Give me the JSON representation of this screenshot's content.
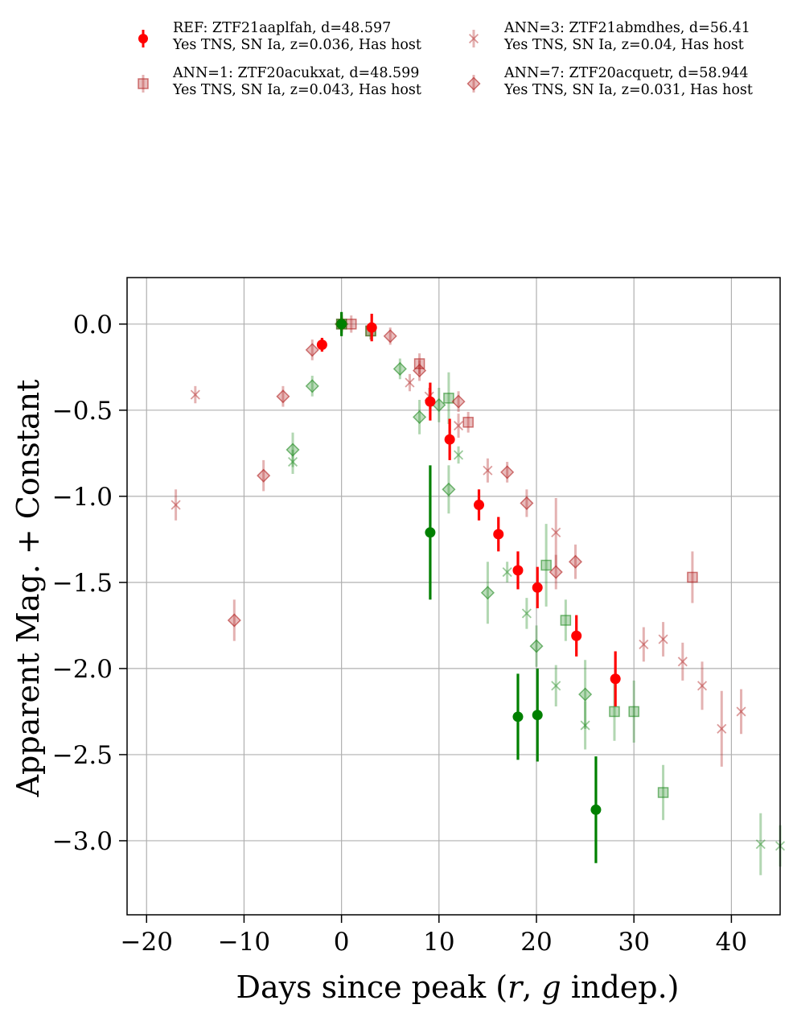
{
  "chart_data": {
    "type": "scatter",
    "xlabel": "Days since peak (r, g indep.)",
    "xlabel_parts": [
      "Days since peak (",
      "r",
      ", ",
      "g",
      " indep.)"
    ],
    "ylabel": "Apparent Mag. + Constant",
    "xlim": [
      -22,
      45
    ],
    "ylim": [
      -3.43,
      0.27
    ],
    "y_inverted": false,
    "grid": true,
    "legend_placement": "top, two columns, above plot",
    "x_ticks": [
      -20,
      -10,
      0,
      10,
      20,
      30,
      40
    ],
    "x_tick_labels": [
      "−20",
      "−10",
      "0",
      "10",
      "20",
      "30",
      "40"
    ],
    "y_ticks": [
      0.0,
      -0.5,
      -1.0,
      -1.5,
      -2.0,
      -2.5,
      -3.0
    ],
    "y_tick_labels": [
      "0.0",
      "−0.5",
      "−1.0",
      "−1.5",
      "−2.0",
      "−2.5",
      "−3.0"
    ],
    "colors": {
      "r_band": "#ff0000",
      "g_band": "#008000",
      "neighbor_r": "#b22222",
      "neighbor_g": "#228b22"
    },
    "series": [
      {
        "legend_line1": "REF: ZTF21aaplfah, d=48.597",
        "legend_line2": "Yes TNS, SN Ia, z=0.036, Has host",
        "marker": "circle",
        "opacity": 1.0,
        "r_band": [
          {
            "x": -2,
            "y": -0.12,
            "err": 0.04
          },
          {
            "x": 0,
            "y": 0.0,
            "err": 0.04
          },
          {
            "x": 3.1,
            "y": -0.02,
            "err": 0.08
          },
          {
            "x": 9.1,
            "y": -0.45,
            "err": 0.11
          },
          {
            "x": 11.1,
            "y": -0.67,
            "err": 0.12
          },
          {
            "x": 14.1,
            "y": -1.05,
            "err": 0.09
          },
          {
            "x": 16.1,
            "y": -1.22,
            "err": 0.1
          },
          {
            "x": 18.1,
            "y": -1.43,
            "err": 0.11
          },
          {
            "x": 20.1,
            "y": -1.53,
            "err": 0.12
          },
          {
            "x": 24.1,
            "y": -1.81,
            "err": 0.12
          },
          {
            "x": 28.1,
            "y": -2.06,
            "err": 0.16
          }
        ],
        "g_band": [
          {
            "x": 0,
            "y": 0.0,
            "err": 0.07
          },
          {
            "x": 9.1,
            "y": -1.21,
            "err": 0.39
          },
          {
            "x": 18.1,
            "y": -2.28,
            "err": 0.25
          },
          {
            "x": 20.1,
            "y": -2.27,
            "err": 0.27
          },
          {
            "x": 26.1,
            "y": -2.82,
            "err": 0.31
          }
        ]
      },
      {
        "legend_line1": "ANN=1: ZTF20acukxat, d=48.599",
        "legend_line2": "Yes TNS, SN Ia, z=0.043, Has host",
        "marker": "square",
        "opacity": 0.3,
        "r_band": [
          {
            "x": 0,
            "y": 0.0,
            "err": 0.05
          },
          {
            "x": 1,
            "y": 0.0,
            "err": 0.05
          },
          {
            "x": 3,
            "y": -0.04,
            "err": 0.05
          },
          {
            "x": 8,
            "y": -0.23,
            "err": 0.06
          },
          {
            "x": 13,
            "y": -0.57,
            "err": 0.06
          },
          {
            "x": 36,
            "y": -1.47,
            "err": 0.15
          }
        ],
        "g_band": [
          {
            "x": 0,
            "y": 0.0,
            "err": 0.05
          },
          {
            "x": 3,
            "y": -0.04,
            "err": 0.05
          },
          {
            "x": 11,
            "y": -0.43,
            "err": 0.15
          },
          {
            "x": 21,
            "y": -1.4,
            "err": 0.24
          },
          {
            "x": 23,
            "y": -1.72,
            "err": 0.12
          },
          {
            "x": 28,
            "y": -2.25,
            "err": 0.17
          },
          {
            "x": 30,
            "y": -2.25,
            "err": 0.18
          },
          {
            "x": 33,
            "y": -2.72,
            "err": 0.16
          }
        ]
      },
      {
        "legend_line1": "ANN=3: ZTF21abmdhes, d=56.41",
        "legend_line2": "Yes TNS, SN Ia, z=0.04, Has host",
        "marker": "x",
        "opacity": 0.3,
        "r_band": [
          {
            "x": -17,
            "y": -1.05,
            "err": 0.09
          },
          {
            "x": -15,
            "y": -0.41,
            "err": 0.05
          },
          {
            "x": 7,
            "y": -0.34,
            "err": 0.05
          },
          {
            "x": 9,
            "y": -0.42,
            "err": 0.05
          },
          {
            "x": 12,
            "y": -0.59,
            "err": 0.07
          },
          {
            "x": 15,
            "y": -0.85,
            "err": 0.07
          },
          {
            "x": 22,
            "y": -1.21,
            "err": 0.2
          },
          {
            "x": 31,
            "y": -1.86,
            "err": 0.1
          },
          {
            "x": 33,
            "y": -1.83,
            "err": 0.1
          },
          {
            "x": 35,
            "y": -1.96,
            "err": 0.11
          },
          {
            "x": 37,
            "y": -2.1,
            "err": 0.14
          },
          {
            "x": 39,
            "y": -2.35,
            "err": 0.22
          },
          {
            "x": 41,
            "y": -2.25,
            "err": 0.13
          }
        ],
        "g_band": [
          {
            "x": -5,
            "y": -0.8,
            "err": 0.07
          },
          {
            "x": 12,
            "y": -0.76,
            "err": 0.05
          },
          {
            "x": 17,
            "y": -1.44,
            "err": 0.06
          },
          {
            "x": 19,
            "y": -1.68,
            "err": 0.09
          },
          {
            "x": 22,
            "y": -2.1,
            "err": 0.12
          },
          {
            "x": 25,
            "y": -2.33,
            "err": 0.14
          },
          {
            "x": 43,
            "y": -3.02,
            "err": 0.18
          },
          {
            "x": 45,
            "y": -3.03,
            "err": 0.12
          }
        ]
      },
      {
        "legend_line1": "ANN=7: ZTF20acquetr, d=58.944",
        "legend_line2": "Yes TNS, SN Ia, z=0.031, Has host",
        "marker": "diamond",
        "opacity": 0.3,
        "r_band": [
          {
            "x": -11,
            "y": -1.72,
            "err": 0.12
          },
          {
            "x": -8,
            "y": -0.88,
            "err": 0.09
          },
          {
            "x": -6,
            "y": -0.42,
            "err": 0.06
          },
          {
            "x": -3,
            "y": -0.15,
            "err": 0.06
          },
          {
            "x": 0,
            "y": 0.0,
            "err": 0.05
          },
          {
            "x": 5,
            "y": -0.07,
            "err": 0.05
          },
          {
            "x": 8,
            "y": -0.27,
            "err": 0.06
          },
          {
            "x": 12,
            "y": -0.45,
            "err": 0.06
          },
          {
            "x": 17,
            "y": -0.86,
            "err": 0.06
          },
          {
            "x": 19,
            "y": -1.04,
            "err": 0.08
          },
          {
            "x": 22,
            "y": -1.44,
            "err": 0.1
          },
          {
            "x": 24,
            "y": -1.38,
            "err": 0.1
          }
        ],
        "g_band": [
          {
            "x": -3,
            "y": -0.36,
            "err": 0.06
          },
          {
            "x": -5,
            "y": -0.73,
            "err": 0.1
          },
          {
            "x": 0,
            "y": 0.0,
            "err": 0.05
          },
          {
            "x": 6,
            "y": -0.26,
            "err": 0.06
          },
          {
            "x": 8,
            "y": -0.54,
            "err": 0.1
          },
          {
            "x": 10,
            "y": -0.47,
            "err": 0.1
          },
          {
            "x": 11,
            "y": -0.96,
            "err": 0.14
          },
          {
            "x": 15,
            "y": -1.56,
            "err": 0.18
          },
          {
            "x": 20,
            "y": -1.87,
            "err": 0.12
          },
          {
            "x": 25,
            "y": -2.15,
            "err": 0.2
          }
        ]
      }
    ]
  }
}
